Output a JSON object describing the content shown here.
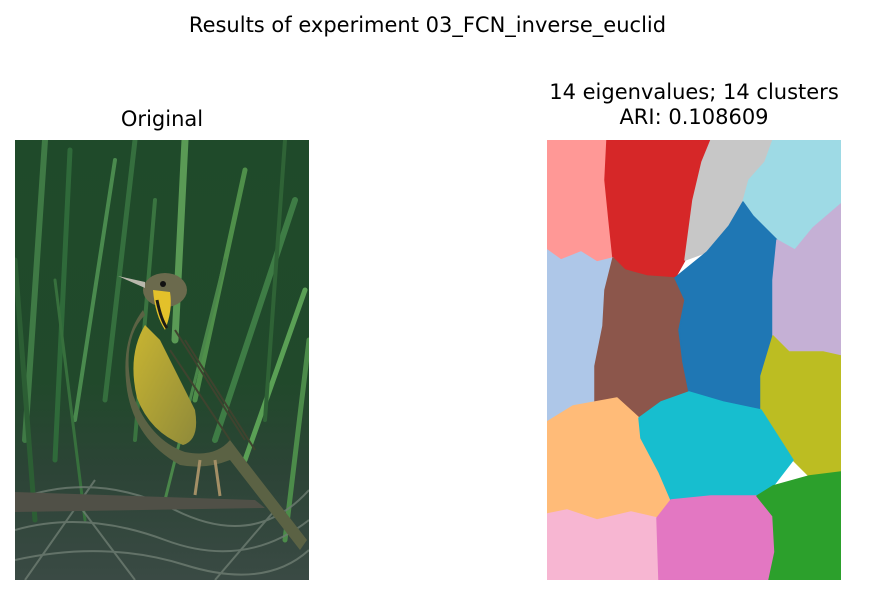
{
  "figure": {
    "suptitle": "Results of experiment 03_FCN_inverse_euclid"
  },
  "left_panel": {
    "title": "Original",
    "image_description": "bird-in-grass"
  },
  "right_panel": {
    "title_line1": "14 eigenvalues; 14 clusters",
    "title_line2": "ARI: 0.108609",
    "n_clusters": 14,
    "cluster_colors": [
      "#ff9896",
      "#d62728",
      "#c7c7c7",
      "#9edae5",
      "#aec7e8",
      "#8c564b",
      "#1f77b4",
      "#c5b0d5",
      "#bcbd22",
      "#ffbb78",
      "#17becf",
      "#f7b6d2",
      "#e377c2",
      "#2ca02c"
    ]
  }
}
